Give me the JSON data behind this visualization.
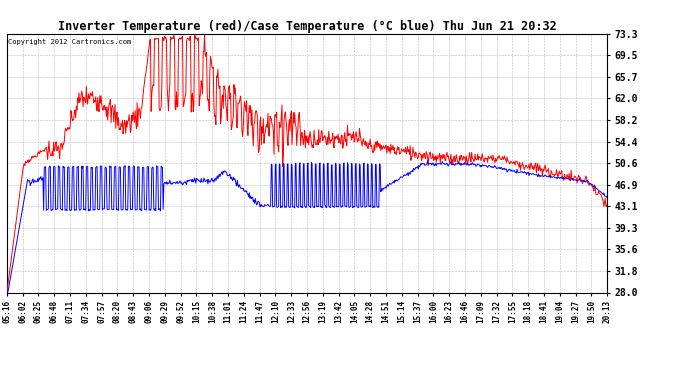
{
  "title": "Inverter Temperature (red)/Case Temperature (°C blue) Thu Jun 21 20:32",
  "copyright": "Copyright 2012 Cartronics.com",
  "ylabel_right_ticks": [
    28.0,
    31.8,
    35.6,
    39.3,
    43.1,
    46.9,
    50.6,
    54.4,
    58.2,
    62.0,
    65.7,
    69.5,
    73.3
  ],
  "ymin": 28.0,
  "ymax": 73.3,
  "bg_color": "#ffffff",
  "grid_color": "#aaaaaa",
  "red_color": "#ff0000",
  "blue_color": "#0000ff",
  "x_labels": [
    "05:16",
    "06:02",
    "06:25",
    "06:48",
    "07:11",
    "07:34",
    "07:57",
    "08:20",
    "08:43",
    "09:06",
    "09:29",
    "09:52",
    "10:15",
    "10:38",
    "11:01",
    "11:24",
    "11:47",
    "12:10",
    "12:33",
    "12:56",
    "13:19",
    "13:42",
    "14:05",
    "14:28",
    "14:51",
    "15:14",
    "15:37",
    "16:00",
    "16:23",
    "16:46",
    "17:09",
    "17:32",
    "17:55",
    "18:18",
    "18:41",
    "19:04",
    "19:27",
    "19:50",
    "20:13"
  ],
  "figsize": [
    6.9,
    3.75
  ],
  "dpi": 100
}
